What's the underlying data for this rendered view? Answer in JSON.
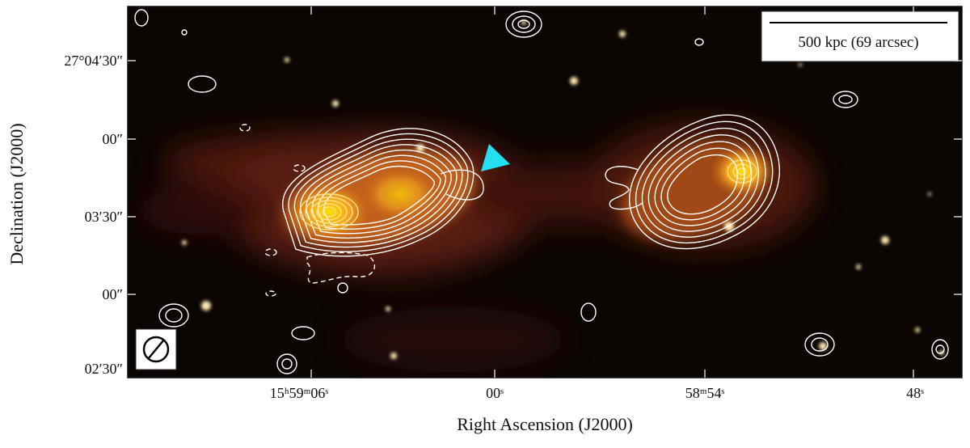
{
  "figure": {
    "x_axis": {
      "label": "Right Ascension (J2000)",
      "ticks": [
        "15ʰ59ᵐ06ˢ",
        "00ˢ",
        "58ᵐ54ˢ",
        "48ˢ"
      ]
    },
    "y_axis": {
      "label": "Declination (J2000)",
      "ticks": [
        "27°04′30″",
        "00″",
        "03′30″",
        "00″",
        "02′30″"
      ]
    },
    "scale_bar": {
      "label": "500 kpc (69 arcsec)"
    }
  }
}
